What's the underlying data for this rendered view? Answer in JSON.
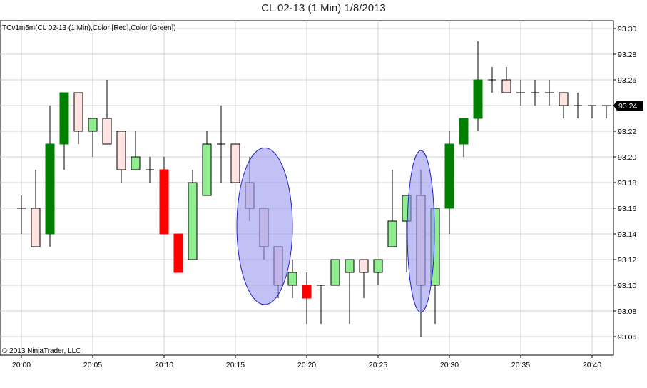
{
  "title": "CL 02-13 (1 Min)  1/8/2013",
  "indicator_label": "TCv1m5m(CL 02-13 (1 Min),Color [Red],Color [Green])",
  "copyright": "© 2013 NinjaTrader, LLC",
  "last_price_label": "93.24",
  "colors": {
    "bull_highlight": "#008000",
    "bear_highlight": "#ff0000",
    "bull_normal": "#90ee90",
    "bear_normal": "#ffe4e1",
    "doji": "#ffffff",
    "ellipse_fill": "#9898ee",
    "ellipse_stroke": "#2222cc",
    "price_marker": "#000000"
  },
  "chart_data": {
    "type": "candlestick",
    "title": "CL 02-13 (1 Min)  1/8/2013",
    "x_tick_labels": [
      "20:00",
      "20:05",
      "20:10",
      "20:15",
      "20:20",
      "20:25",
      "20:30",
      "20:35",
      "20:40"
    ],
    "y_tick_labels": [
      "93.06",
      "93.08",
      "93.10",
      "93.12",
      "93.14",
      "93.16",
      "93.18",
      "93.20",
      "93.22",
      "93.24",
      "93.26",
      "93.28",
      "93.30"
    ],
    "ylim": [
      93.05,
      93.31
    ],
    "xlim_minutes": [
      0,
      41.5
    ],
    "grid": true,
    "last_price": 93.24,
    "bars": [
      {
        "time": "20:00",
        "o": 93.16,
        "h": 93.17,
        "l": 93.14,
        "c": 93.16,
        "style": "doji"
      },
      {
        "time": "20:01",
        "o": 93.13,
        "h": 93.19,
        "l": 93.13,
        "c": 93.16,
        "style": "bear_normal"
      },
      {
        "time": "20:02",
        "o": 93.14,
        "h": 93.24,
        "l": 93.13,
        "c": 93.21,
        "style": "bull_highlight"
      },
      {
        "time": "20:03",
        "o": 93.21,
        "h": 93.25,
        "l": 93.19,
        "c": 93.25,
        "style": "bull_highlight"
      },
      {
        "time": "20:04",
        "o": 93.25,
        "h": 93.25,
        "l": 93.21,
        "c": 93.22,
        "style": "bear_normal"
      },
      {
        "time": "20:05",
        "o": 93.22,
        "h": 93.23,
        "l": 93.2,
        "c": 93.23,
        "style": "bull_normal"
      },
      {
        "time": "20:06",
        "o": 93.23,
        "h": 93.26,
        "l": 93.21,
        "c": 93.21,
        "style": "bear_normal"
      },
      {
        "time": "20:07",
        "o": 93.22,
        "h": 93.22,
        "l": 93.18,
        "c": 93.19,
        "style": "bear_normal"
      },
      {
        "time": "20:08",
        "o": 93.19,
        "h": 93.22,
        "l": 93.19,
        "c": 93.2,
        "style": "bull_normal"
      },
      {
        "time": "20:09",
        "o": 93.19,
        "h": 93.2,
        "l": 93.18,
        "c": 93.19,
        "style": "doji"
      },
      {
        "time": "20:10",
        "o": 93.19,
        "h": 93.2,
        "l": 93.14,
        "c": 93.14,
        "style": "bear_highlight"
      },
      {
        "time": "20:11",
        "o": 93.14,
        "h": 93.14,
        "l": 93.11,
        "c": 93.11,
        "style": "bear_highlight"
      },
      {
        "time": "20:12",
        "o": 93.12,
        "h": 93.19,
        "l": 93.12,
        "c": 93.18,
        "style": "bull_normal"
      },
      {
        "time": "20:13",
        "o": 93.17,
        "h": 93.22,
        "l": 93.17,
        "c": 93.21,
        "style": "bull_normal"
      },
      {
        "time": "20:14",
        "o": 93.21,
        "h": 93.24,
        "l": 93.18,
        "c": 93.21,
        "style": "doji"
      },
      {
        "time": "20:15",
        "o": 93.21,
        "h": 93.21,
        "l": 93.18,
        "c": 93.18,
        "style": "bear_normal"
      },
      {
        "time": "20:16",
        "o": 93.18,
        "h": 93.2,
        "l": 93.15,
        "c": 93.16,
        "style": "bear_normal"
      },
      {
        "time": "20:17",
        "o": 93.16,
        "h": 93.16,
        "l": 93.12,
        "c": 93.13,
        "style": "bear_normal"
      },
      {
        "time": "20:18",
        "o": 93.13,
        "h": 93.13,
        "l": 93.09,
        "c": 93.1,
        "style": "bear_normal"
      },
      {
        "time": "20:19",
        "o": 93.1,
        "h": 93.12,
        "l": 93.09,
        "c": 93.11,
        "style": "bull_normal"
      },
      {
        "time": "20:20",
        "o": 93.1,
        "h": 93.11,
        "l": 93.07,
        "c": 93.09,
        "style": "bear_highlight"
      },
      {
        "time": "20:21",
        "o": 93.1,
        "h": 93.1,
        "l": 93.07,
        "c": 93.1,
        "style": "doji"
      },
      {
        "time": "20:22",
        "o": 93.1,
        "h": 93.12,
        "l": 93.1,
        "c": 93.12,
        "style": "bull_normal"
      },
      {
        "time": "20:23",
        "o": 93.11,
        "h": 93.12,
        "l": 93.07,
        "c": 93.12,
        "style": "bull_normal"
      },
      {
        "time": "20:24",
        "o": 93.12,
        "h": 93.12,
        "l": 93.09,
        "c": 93.11,
        "style": "bear_normal"
      },
      {
        "time": "20:25",
        "o": 93.11,
        "h": 93.12,
        "l": 93.1,
        "c": 93.12,
        "style": "bull_normal"
      },
      {
        "time": "20:26",
        "o": 93.13,
        "h": 93.19,
        "l": 93.13,
        "c": 93.15,
        "style": "bull_normal"
      },
      {
        "time": "20:27",
        "o": 93.15,
        "h": 93.17,
        "l": 93.11,
        "c": 93.17,
        "style": "bull_normal"
      },
      {
        "time": "20:28",
        "o": 93.17,
        "h": 93.19,
        "l": 93.06,
        "c": 93.1,
        "style": "bear_normal"
      },
      {
        "time": "20:29",
        "o": 93.1,
        "h": 93.16,
        "l": 93.07,
        "c": 93.16,
        "style": "bull_normal"
      },
      {
        "time": "20:30",
        "o": 93.16,
        "h": 93.22,
        "l": 93.14,
        "c": 93.21,
        "style": "bull_highlight"
      },
      {
        "time": "20:31",
        "o": 93.21,
        "h": 93.23,
        "l": 93.2,
        "c": 93.23,
        "style": "bull_highlight"
      },
      {
        "time": "20:32",
        "o": 93.23,
        "h": 93.29,
        "l": 93.22,
        "c": 93.26,
        "style": "bull_highlight"
      },
      {
        "time": "20:33",
        "o": 93.26,
        "h": 93.27,
        "l": 93.25,
        "c": 93.26,
        "style": "doji"
      },
      {
        "time": "20:34",
        "o": 93.26,
        "h": 93.27,
        "l": 93.25,
        "c": 93.25,
        "style": "bear_normal"
      },
      {
        "time": "20:35",
        "o": 93.25,
        "h": 93.26,
        "l": 93.24,
        "c": 93.25,
        "style": "doji"
      },
      {
        "time": "20:36",
        "o": 93.25,
        "h": 93.26,
        "l": 93.24,
        "c": 93.25,
        "style": "doji"
      },
      {
        "time": "20:37",
        "o": 93.25,
        "h": 93.26,
        "l": 93.24,
        "c": 93.25,
        "style": "doji"
      },
      {
        "time": "20:38",
        "o": 93.25,
        "h": 93.25,
        "l": 93.23,
        "c": 93.24,
        "style": "bear_normal"
      },
      {
        "time": "20:39",
        "o": 93.24,
        "h": 93.25,
        "l": 93.23,
        "c": 93.24,
        "style": "doji"
      },
      {
        "time": "20:40",
        "o": 93.24,
        "h": 93.24,
        "l": 93.23,
        "c": 93.24,
        "style": "doji"
      },
      {
        "time": "20:41",
        "o": 93.24,
        "h": 93.24,
        "l": 93.23,
        "c": 93.24,
        "style": "doji"
      }
    ],
    "ellipses": [
      {
        "center_minute": 17.05,
        "center_price": 93.146,
        "half_width_minutes": 1.95,
        "half_height_price": 0.061
      },
      {
        "center_minute": 28.0,
        "center_price": 93.142,
        "half_width_minutes": 0.95,
        "half_height_price": 0.063
      }
    ]
  }
}
